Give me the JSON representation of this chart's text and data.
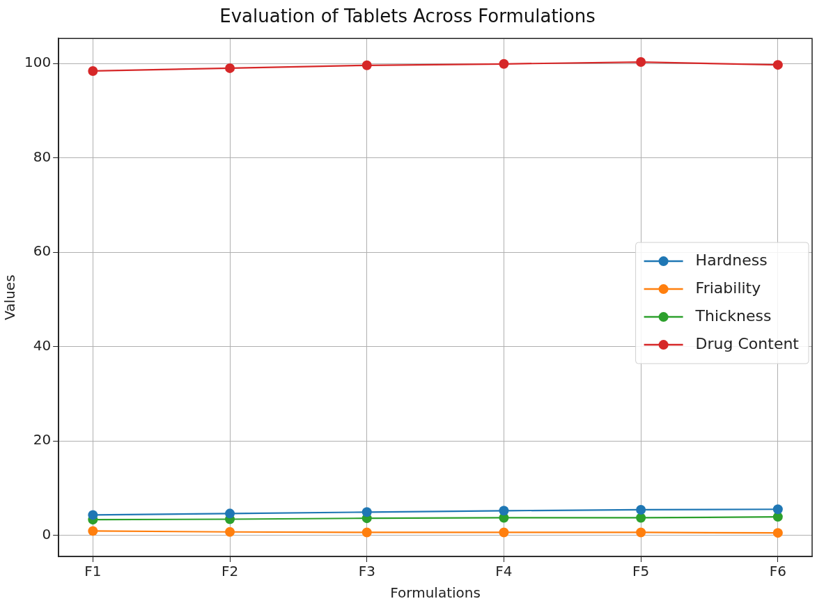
{
  "chart_data": {
    "type": "line",
    "title": "Evaluation of Tablets Across Formulations",
    "xlabel": "Formulations",
    "ylabel": "Values",
    "categories": [
      "F1",
      "F2",
      "F3",
      "F4",
      "F5",
      "F6"
    ],
    "series": [
      {
        "name": "Hardness",
        "color": "#1f77b4",
        "values": [
          4.3,
          4.6,
          4.9,
          5.2,
          5.4,
          5.5
        ]
      },
      {
        "name": "Friability",
        "color": "#ff7f0e",
        "values": [
          0.9,
          0.7,
          0.6,
          0.6,
          0.6,
          0.5
        ]
      },
      {
        "name": "Thickness",
        "color": "#2ca02c",
        "values": [
          3.3,
          3.4,
          3.6,
          3.7,
          3.7,
          3.9
        ]
      },
      {
        "name": "Drug Content",
        "color": "#d62728",
        "values": [
          98.4,
          99.0,
          99.6,
          99.9,
          100.3,
          99.7
        ]
      }
    ],
    "ylim": [
      -4.5,
      105.3
    ],
    "yticks": [
      0,
      20,
      40,
      60,
      80,
      100
    ],
    "grid": true,
    "legend": "right",
    "marker": "circle",
    "line_style": "solid"
  }
}
